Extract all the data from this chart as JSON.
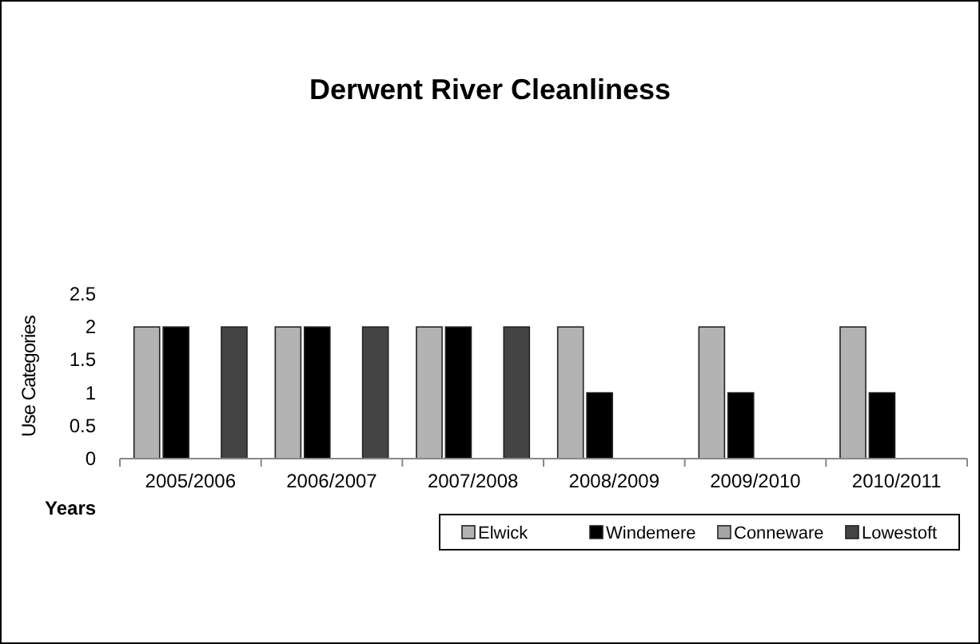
{
  "chart_data": {
    "type": "bar",
    "title": "Derwent River Cleanliness",
    "xlabel": "Years",
    "ylabel": "Use Categories",
    "categories": [
      "2005/2006",
      "2006/2007",
      "2007/2008",
      "2008/2009",
      "2009/2010",
      "2010/2011"
    ],
    "series": [
      {
        "name": "Elwick",
        "color": "#b3b3b3",
        "values": [
          2,
          2,
          2,
          2,
          2,
          2
        ]
      },
      {
        "name": "Windemere",
        "color": "#000000",
        "values": [
          2,
          2,
          2,
          1,
          1,
          1
        ]
      },
      {
        "name": "Conneware",
        "color": "#a6a6a6",
        "values": [
          null,
          null,
          null,
          null,
          null,
          null
        ]
      },
      {
        "name": "Lowestoft",
        "color": "#444444",
        "values": [
          2,
          2,
          2,
          null,
          null,
          null
        ]
      }
    ],
    "ylim": [
      0,
      2.5
    ],
    "yticks": [
      0,
      0.5,
      1,
      1.5,
      2,
      2.5
    ],
    "grid": false,
    "legend": "bottom right"
  }
}
